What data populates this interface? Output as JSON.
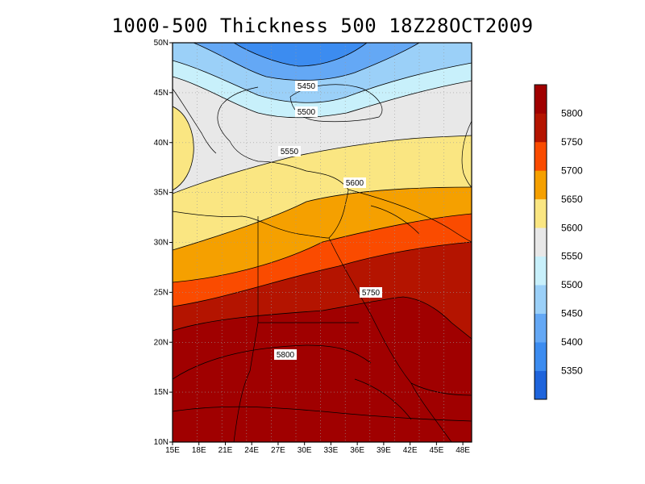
{
  "title": "1000-500 Thickness 500 18Z28OCT2009",
  "chart_data": {
    "type": "contour-map",
    "title": "1000-500 Thickness 500 18Z28OCT2009",
    "lon_ticks": [
      "15E",
      "18E",
      "21E",
      "24E",
      "27E",
      "30E",
      "33E",
      "36E",
      "39E",
      "42E",
      "45E",
      "48E"
    ],
    "lat_ticks": [
      "10N",
      "15N",
      "20N",
      "25N",
      "30N",
      "35N",
      "40N",
      "45N",
      "50N"
    ],
    "lon_range": [
      15,
      49
    ],
    "lat_range": [
      10,
      50
    ],
    "contour_labels": [
      "5450",
      "5500",
      "5550",
      "5600",
      "5750",
      "5800"
    ],
    "colorbar": {
      "levels": [
        "5350",
        "5400",
        "5450",
        "5500",
        "5550",
        "5600",
        "5650",
        "5700",
        "5750",
        "5800"
      ],
      "colors": [
        "#1e64dc",
        "#3c8cf0",
        "#64a8f5",
        "#9bd0f8",
        "#c8f0fb",
        "#e8e8e8",
        "#fae682",
        "#f5a000",
        "#fa4b00",
        "#b41400",
        "#a00000"
      ]
    },
    "grid": true
  }
}
